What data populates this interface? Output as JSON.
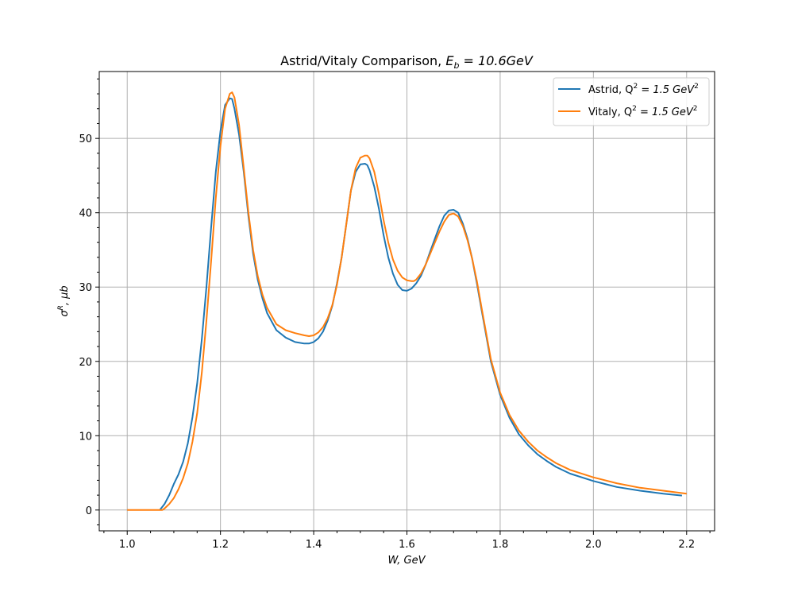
{
  "chart_data": {
    "type": "line",
    "title_prefix": "Astrid/Vitaly Comparison, ",
    "title_math": "E",
    "title_math_sub": "b",
    "title_math_rest": " = 10.6GeV",
    "xlabel": "W, GeV",
    "ylabel": "σ",
    "ylabel_sup": "R",
    "ylabel_rest": ", μb",
    "xlim": [
      0.94,
      2.26
    ],
    "ylim": [
      -2.8,
      59
    ],
    "xticks": [
      "1.0",
      "1.2",
      "1.4",
      "1.6",
      "1.8",
      "2.0",
      "2.2"
    ],
    "yticks": [
      "0",
      "10",
      "20",
      "30",
      "40",
      "50"
    ],
    "grid": true,
    "legend_position": "top-right",
    "series": [
      {
        "name": "Astrid, Q² = 1.5 GeV²",
        "legend_main": "Astrid, Q",
        "legend_sup": "2",
        "legend_rest": " = 1.5 GeV",
        "legend_sup2": "2",
        "color": "#1f77b4",
        "x": [
          1.07,
          1.08,
          1.09,
          1.1,
          1.11,
          1.12,
          1.13,
          1.14,
          1.15,
          1.16,
          1.17,
          1.18,
          1.19,
          1.2,
          1.21,
          1.22,
          1.225,
          1.23,
          1.24,
          1.25,
          1.26,
          1.27,
          1.28,
          1.29,
          1.3,
          1.32,
          1.34,
          1.36,
          1.38,
          1.39,
          1.4,
          1.41,
          1.42,
          1.43,
          1.44,
          1.45,
          1.46,
          1.47,
          1.48,
          1.49,
          1.5,
          1.51,
          1.515,
          1.52,
          1.53,
          1.54,
          1.55,
          1.56,
          1.57,
          1.58,
          1.59,
          1.6,
          1.61,
          1.62,
          1.63,
          1.64,
          1.65,
          1.66,
          1.67,
          1.68,
          1.69,
          1.7,
          1.71,
          1.72,
          1.73,
          1.74,
          1.75,
          1.76,
          1.77,
          1.78,
          1.8,
          1.82,
          1.84,
          1.86,
          1.88,
          1.9,
          1.92,
          1.95,
          2.0,
          2.05,
          2.1,
          2.15,
          2.19
        ],
        "y": [
          0.0,
          0.8,
          2.0,
          3.5,
          4.8,
          6.5,
          9.0,
          12.5,
          17.0,
          23.0,
          30.0,
          38.0,
          45.5,
          51.0,
          54.5,
          55.4,
          55.3,
          54.0,
          50.5,
          45.5,
          39.5,
          34.5,
          31.0,
          28.5,
          26.5,
          24.2,
          23.2,
          22.6,
          22.4,
          22.4,
          22.6,
          23.1,
          24.0,
          25.5,
          27.5,
          30.5,
          34.0,
          38.5,
          43.0,
          45.5,
          46.5,
          46.6,
          46.4,
          45.7,
          43.5,
          40.5,
          37.0,
          34.0,
          31.8,
          30.3,
          29.6,
          29.5,
          29.8,
          30.5,
          31.5,
          33.0,
          34.8,
          36.5,
          38.2,
          39.6,
          40.3,
          40.4,
          40.0,
          38.5,
          36.5,
          33.8,
          30.5,
          27.0,
          23.5,
          20.0,
          15.5,
          12.4,
          10.2,
          8.7,
          7.5,
          6.6,
          5.8,
          4.9,
          3.9,
          3.1,
          2.6,
          2.2,
          1.95
        ]
      },
      {
        "name": "Vitaly, Q² = 1.5 GeV²",
        "legend_main": "Vitaly, Q",
        "legend_sup": "2",
        "legend_rest": " = 1.5 GeV",
        "legend_sup2": "2",
        "color": "#ff7f0e",
        "x": [
          1.0,
          1.02,
          1.04,
          1.06,
          1.075,
          1.08,
          1.09,
          1.1,
          1.11,
          1.12,
          1.13,
          1.14,
          1.15,
          1.16,
          1.17,
          1.18,
          1.19,
          1.2,
          1.21,
          1.22,
          1.225,
          1.23,
          1.24,
          1.25,
          1.26,
          1.27,
          1.28,
          1.29,
          1.3,
          1.32,
          1.34,
          1.36,
          1.38,
          1.39,
          1.4,
          1.41,
          1.42,
          1.43,
          1.44,
          1.45,
          1.46,
          1.47,
          1.48,
          1.49,
          1.5,
          1.51,
          1.515,
          1.52,
          1.53,
          1.54,
          1.55,
          1.56,
          1.57,
          1.58,
          1.59,
          1.6,
          1.61,
          1.615,
          1.62,
          1.63,
          1.64,
          1.65,
          1.66,
          1.67,
          1.68,
          1.69,
          1.7,
          1.71,
          1.72,
          1.73,
          1.74,
          1.75,
          1.76,
          1.77,
          1.78,
          1.8,
          1.82,
          1.84,
          1.86,
          1.88,
          1.9,
          1.92,
          1.95,
          2.0,
          2.05,
          2.1,
          2.15,
          2.2
        ],
        "y": [
          0.0,
          0.0,
          0.0,
          0.0,
          0.0,
          0.2,
          0.8,
          1.6,
          2.8,
          4.3,
          6.3,
          9.2,
          13.0,
          18.5,
          25.5,
          33.5,
          42.0,
          49.0,
          54.0,
          56.0,
          56.2,
          55.5,
          51.8,
          46.0,
          40.0,
          35.0,
          31.5,
          29.0,
          27.2,
          25.0,
          24.2,
          23.8,
          23.5,
          23.4,
          23.5,
          23.9,
          24.6,
          25.8,
          27.6,
          30.3,
          34.0,
          38.5,
          43.0,
          46.0,
          47.4,
          47.7,
          47.7,
          47.3,
          45.5,
          42.5,
          39.0,
          36.0,
          33.7,
          32.2,
          31.3,
          30.9,
          30.8,
          30.8,
          31.0,
          31.8,
          33.0,
          34.5,
          36.0,
          37.5,
          38.8,
          39.7,
          39.9,
          39.5,
          38.2,
          36.3,
          33.8,
          30.8,
          27.3,
          23.8,
          20.3,
          15.8,
          12.8,
          10.7,
          9.2,
          8.0,
          7.1,
          6.3,
          5.4,
          4.4,
          3.6,
          3.0,
          2.6,
          2.2
        ]
      }
    ]
  }
}
